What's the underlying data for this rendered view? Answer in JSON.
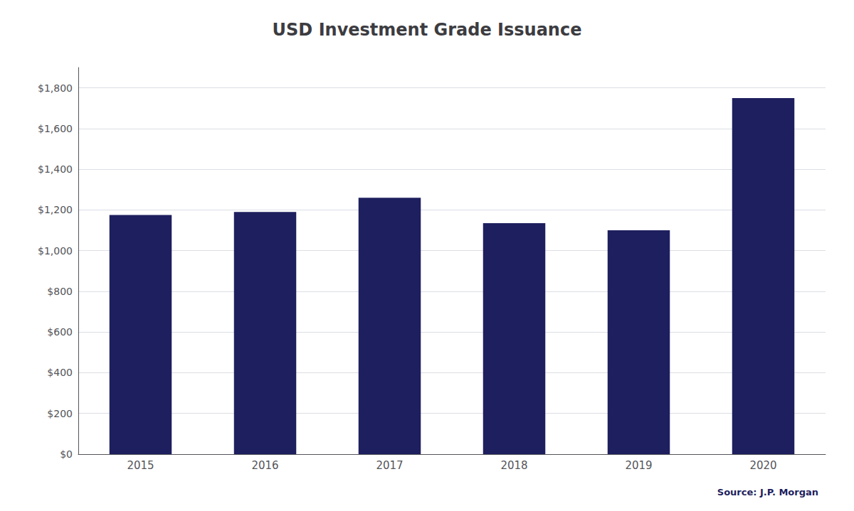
{
  "chart_data": {
    "type": "bar",
    "title": "USD Investment Grade Issuance",
    "categories": [
      "2015",
      "2016",
      "2017",
      "2018",
      "2019",
      "2020"
    ],
    "values": [
      1175,
      1190,
      1260,
      1135,
      1100,
      1750
    ],
    "color": "#1e1f5e",
    "ylim": [
      0,
      1900
    ],
    "yticks": [
      {
        "value": 0,
        "label": "$0"
      },
      {
        "value": 200,
        "label": "$200"
      },
      {
        "value": 400,
        "label": "$400"
      },
      {
        "value": 600,
        "label": "$600"
      },
      {
        "value": 800,
        "label": "$800"
      },
      {
        "value": 1000,
        "label": "$1,000"
      },
      {
        "value": 1200,
        "label": "$1,200"
      },
      {
        "value": 1400,
        "label": "$1,400"
      },
      {
        "value": 1600,
        "label": "$1,600"
      },
      {
        "value": 1800,
        "label": "$1,800"
      }
    ],
    "grid": true,
    "annotations": [
      "Source: J.P. Morgan"
    ]
  }
}
